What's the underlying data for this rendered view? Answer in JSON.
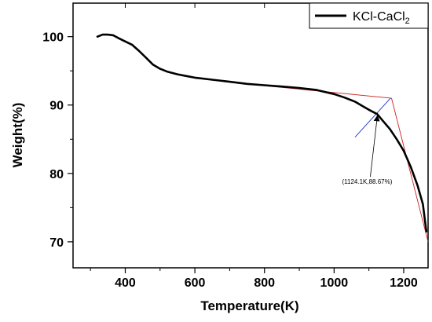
{
  "chart_data": {
    "type": "line",
    "title": "",
    "xlabel": "Temperature(K)",
    "ylabel": "Weight(%)",
    "xlim": [
      250,
      1270
    ],
    "ylim": [
      66.2,
      104.9
    ],
    "xticks": [
      400,
      600,
      800,
      1000,
      1200
    ],
    "yticks": [
      70,
      80,
      90,
      100
    ],
    "grid": false,
    "legend_position": "top-right",
    "series": [
      {
        "name": "KCl-CaCl",
        "name_subscript": "2",
        "color": "#000000",
        "x": [
          320,
          335,
          350,
          365,
          380,
          400,
          420,
          440,
          460,
          480,
          500,
          520,
          550,
          580,
          600,
          650,
          700,
          750,
          800,
          850,
          900,
          950,
          1000,
          1030,
          1060,
          1080,
          1100,
          1124.1,
          1140,
          1160,
          1180,
          1200,
          1220,
          1240,
          1255,
          1265
        ],
        "y": [
          100.0,
          100.3,
          100.3,
          100.2,
          99.8,
          99.3,
          98.8,
          97.9,
          96.9,
          95.9,
          95.3,
          94.9,
          94.5,
          94.2,
          94.0,
          93.7,
          93.4,
          93.1,
          92.9,
          92.7,
          92.5,
          92.2,
          91.6,
          91.1,
          90.5,
          89.9,
          89.3,
          88.67,
          87.7,
          86.5,
          85.0,
          83.3,
          81.0,
          78.2,
          75.5,
          71.5
        ]
      }
    ],
    "tangent_lines": [
      {
        "color": "#cc2222",
        "x": [
          685,
          1165
        ],
        "y": [
          93.4,
          91.0
        ]
      },
      {
        "color": "#cc2222",
        "x": [
          1165,
          1270
        ],
        "y": [
          91.0,
          70.0
        ]
      },
      {
        "color": "#2233cc",
        "x": [
          1060,
          1162
        ],
        "y": [
          85.3,
          91.0
        ]
      }
    ],
    "annotation": {
      "text": "(1124.1K,88.67%)",
      "point": {
        "x": 1124.1,
        "y": 88.67
      },
      "label_anchor": {
        "x": 1104,
        "y": 79.5
      }
    }
  }
}
